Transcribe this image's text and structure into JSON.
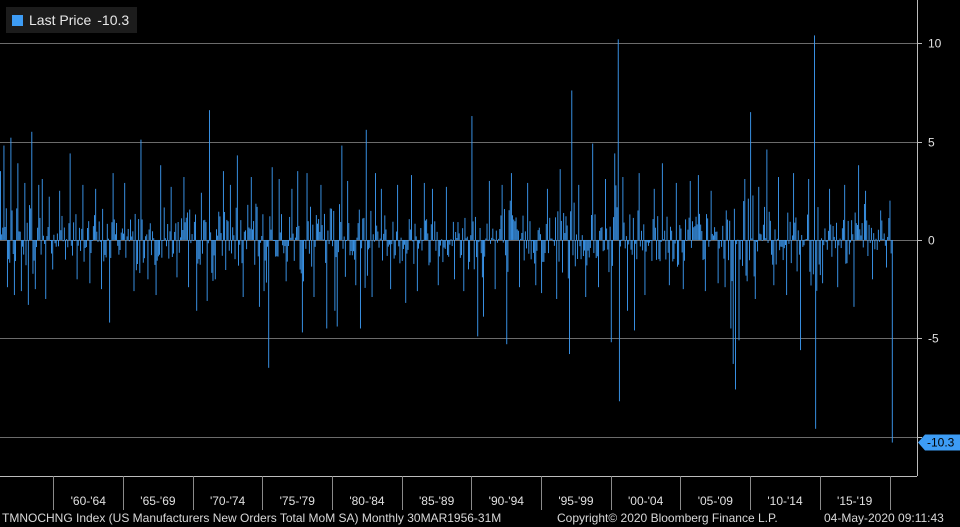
{
  "legend": {
    "label": "Last Price",
    "value": "-10.3",
    "color": "#3d9cf5"
  },
  "last_value_tag": "-10.3",
  "footer": {
    "left": "TMNOCHNG Index (US Manufacturers New Orders Total MoM SA)  Monthly 30MAR1956-31M",
    "copyright": "Copyright© 2020 Bloomberg Finance L.P.",
    "timestamp": "04-May-2020 09:11:43"
  },
  "chart_data": {
    "type": "bar",
    "title": "",
    "xlabel": "",
    "ylabel": "",
    "ylim": [
      -12.0,
      12.2
    ],
    "yticks": [
      10,
      5,
      0,
      -5,
      -10
    ],
    "ytick_labels": [
      "10",
      "5",
      "0",
      "-5",
      ""
    ],
    "grid": true,
    "axis_side": "right",
    "x_start": "1956-03",
    "x_end": "2020-03",
    "x_periods": [
      {
        "label": "'60-'64",
        "start": 1960,
        "end": 1965
      },
      {
        "label": "'65-'69",
        "start": 1965,
        "end": 1970
      },
      {
        "label": "'70-'74",
        "start": 1970,
        "end": 1975
      },
      {
        "label": "'75-'79",
        "start": 1975,
        "end": 1980
      },
      {
        "label": "'80-'84",
        "start": 1980,
        "end": 1985
      },
      {
        "label": "'85-'89",
        "start": 1985,
        "end": 1990
      },
      {
        "label": "'90-'94",
        "start": 1990,
        "end": 1995
      },
      {
        "label": "'95-'99",
        "start": 1995,
        "end": 2000
      },
      {
        "label": "'00-'04",
        "start": 2000,
        "end": 2005
      },
      {
        "label": "'05-'09",
        "start": 2005,
        "end": 2010
      },
      {
        "label": "'10-'14",
        "start": 2010,
        "end": 2015
      },
      {
        "label": "'15-'19",
        "start": 2015,
        "end": 2020
      }
    ],
    "series": [
      {
        "name": "Last Price",
        "color": "#3d9cf5",
        "points": [
          {
            "x": "1956-03",
            "y": 3.5
          },
          {
            "x": "1956-06",
            "y": 4.8
          },
          {
            "x": "1956-09",
            "y": -2.4
          },
          {
            "x": "1956-12",
            "y": 5.2
          },
          {
            "x": "1957-03",
            "y": -2.8
          },
          {
            "x": "1957-06",
            "y": 3.9
          },
          {
            "x": "1957-09",
            "y": -2.6
          },
          {
            "x": "1957-12",
            "y": 2.9
          },
          {
            "x": "1958-03",
            "y": -3.3
          },
          {
            "x": "1958-06",
            "y": 5.5
          },
          {
            "x": "1958-09",
            "y": -2.5
          },
          {
            "x": "1958-12",
            "y": 2.8
          },
          {
            "x": "1959-03",
            "y": 3.1
          },
          {
            "x": "1959-06",
            "y": -3.0
          },
          {
            "x": "1959-09",
            "y": 2.2
          },
          {
            "x": "1959-12",
            "y": -1.5
          },
          {
            "x": "1960-06",
            "y": 2.5
          },
          {
            "x": "1961-03",
            "y": 4.4
          },
          {
            "x": "1961-09",
            "y": -2.0
          },
          {
            "x": "1962-02",
            "y": 2.8
          },
          {
            "x": "1962-08",
            "y": -2.2
          },
          {
            "x": "1963-01",
            "y": 2.6
          },
          {
            "x": "1963-06",
            "y": -2.5
          },
          {
            "x": "1964-01",
            "y": -4.2
          },
          {
            "x": "1964-04",
            "y": 3.4
          },
          {
            "x": "1965-02",
            "y": 2.9
          },
          {
            "x": "1965-10",
            "y": -2.6
          },
          {
            "x": "1966-04",
            "y": 5.1
          },
          {
            "x": "1966-10",
            "y": -2.0
          },
          {
            "x": "1967-05",
            "y": -2.8
          },
          {
            "x": "1967-09",
            "y": 3.8
          },
          {
            "x": "1968-06",
            "y": 2.7
          },
          {
            "x": "1968-11",
            "y": -1.9
          },
          {
            "x": "1969-05",
            "y": 3.2
          },
          {
            "x": "1969-09",
            "y": -2.4
          },
          {
            "x": "1970-04",
            "y": -3.6
          },
          {
            "x": "1970-08",
            "y": 2.4
          },
          {
            "x": "1971-01",
            "y": -3.1
          },
          {
            "x": "1971-03",
            "y": 6.6
          },
          {
            "x": "1971-08",
            "y": -2.0
          },
          {
            "x": "1972-03",
            "y": 3.5
          },
          {
            "x": "1972-09",
            "y": 2.8
          },
          {
            "x": "1973-03",
            "y": 4.3
          },
          {
            "x": "1973-08",
            "y": -2.9
          },
          {
            "x": "1974-03",
            "y": 3.2
          },
          {
            "x": "1974-10",
            "y": -3.4
          },
          {
            "x": "1975-02",
            "y": -2.6
          },
          {
            "x": "1975-06",
            "y": -6.5
          },
          {
            "x": "1975-09",
            "y": 3.7
          },
          {
            "x": "1976-03",
            "y": 3.1
          },
          {
            "x": "1976-09",
            "y": -2.1
          },
          {
            "x": "1977-02",
            "y": 2.6
          },
          {
            "x": "1977-07",
            "y": 3.5
          },
          {
            "x": "1977-11",
            "y": -4.7
          },
          {
            "x": "1978-03",
            "y": 3.4
          },
          {
            "x": "1978-09",
            "y": -2.9
          },
          {
            "x": "1979-03",
            "y": 2.8
          },
          {
            "x": "1979-08",
            "y": -4.5
          },
          {
            "x": "1980-03",
            "y": -3.6
          },
          {
            "x": "1980-05",
            "y": -4.4
          },
          {
            "x": "1980-09",
            "y": 4.8
          },
          {
            "x": "1981-02",
            "y": 3.0
          },
          {
            "x": "1981-09",
            "y": -2.3
          },
          {
            "x": "1982-01",
            "y": -4.5
          },
          {
            "x": "1982-06",
            "y": 5.6
          },
          {
            "x": "1982-11",
            "y": -2.9
          },
          {
            "x": "1983-02",
            "y": 3.4
          },
          {
            "x": "1983-07",
            "y": 2.6
          },
          {
            "x": "1984-03",
            "y": -2.5
          },
          {
            "x": "1984-09",
            "y": 2.8
          },
          {
            "x": "1985-04",
            "y": -3.2
          },
          {
            "x": "1985-09",
            "y": 3.3
          },
          {
            "x": "1986-02",
            "y": -2.6
          },
          {
            "x": "1986-08",
            "y": 2.9
          },
          {
            "x": "1987-03",
            "y": 2.6
          },
          {
            "x": "1987-08",
            "y": -2.3
          },
          {
            "x": "1988-03",
            "y": 2.7
          },
          {
            "x": "1988-10",
            "y": -2.0
          },
          {
            "x": "1989-06",
            "y": -2.6
          },
          {
            "x": "1990-01",
            "y": 6.3
          },
          {
            "x": "1990-06",
            "y": -4.9
          },
          {
            "x": "1990-11",
            "y": -3.9
          },
          {
            "x": "1991-04",
            "y": 3.0
          },
          {
            "x": "1991-09",
            "y": -2.5
          },
          {
            "x": "1992-03",
            "y": 2.8
          },
          {
            "x": "1992-07",
            "y": -5.3
          },
          {
            "x": "1992-11",
            "y": 3.4
          },
          {
            "x": "1993-06",
            "y": -2.4
          },
          {
            "x": "1994-01",
            "y": 2.9
          },
          {
            "x": "1994-08",
            "y": -2.3
          },
          {
            "x": "1995-01",
            "y": -2.7
          },
          {
            "x": "1995-06",
            "y": 2.6
          },
          {
            "x": "1996-02",
            "y": -3.0
          },
          {
            "x": "1996-05",
            "y": 3.6
          },
          {
            "x": "1997-01",
            "y": -5.8
          },
          {
            "x": "1997-03",
            "y": 7.6
          },
          {
            "x": "1997-09",
            "y": 2.8
          },
          {
            "x": "1998-03",
            "y": -2.9
          },
          {
            "x": "1998-09",
            "y": 4.9
          },
          {
            "x": "1999-02",
            "y": -2.4
          },
          {
            "x": "1999-08",
            "y": 3.1
          },
          {
            "x": "2000-01",
            "y": -5.2
          },
          {
            "x": "2000-04",
            "y": 4.4
          },
          {
            "x": "2000-07",
            "y": 10.2
          },
          {
            "x": "2000-08",
            "y": -8.2
          },
          {
            "x": "2000-11",
            "y": 3.2
          },
          {
            "x": "2001-03",
            "y": -3.6
          },
          {
            "x": "2001-09",
            "y": -4.6
          },
          {
            "x": "2002-01",
            "y": 3.4
          },
          {
            "x": "2002-06",
            "y": -2.8
          },
          {
            "x": "2003-02",
            "y": 2.6
          },
          {
            "x": "2003-09",
            "y": 3.9
          },
          {
            "x": "2004-03",
            "y": -2.3
          },
          {
            "x": "2004-09",
            "y": 2.9
          },
          {
            "x": "2005-03",
            "y": -2.5
          },
          {
            "x": "2005-09",
            "y": 3.0
          },
          {
            "x": "2006-04",
            "y": 3.3
          },
          {
            "x": "2006-10",
            "y": -2.6
          },
          {
            "x": "2007-03",
            "y": 2.5
          },
          {
            "x": "2007-09",
            "y": -2.2
          },
          {
            "x": "2008-03",
            "y": -2.4
          },
          {
            "x": "2008-08",
            "y": -4.5
          },
          {
            "x": "2008-10",
            "y": -6.3
          },
          {
            "x": "2008-12",
            "y": -7.6
          },
          {
            "x": "2009-03",
            "y": -5.1
          },
          {
            "x": "2009-08",
            "y": 3.1
          },
          {
            "x": "2010-01",
            "y": 6.5
          },
          {
            "x": "2010-05",
            "y": -3.0
          },
          {
            "x": "2010-08",
            "y": 2.7
          },
          {
            "x": "2011-03",
            "y": 4.6
          },
          {
            "x": "2011-09",
            "y": -2.3
          },
          {
            "x": "2012-01",
            "y": 3.2
          },
          {
            "x": "2012-08",
            "y": -2.8
          },
          {
            "x": "2013-02",
            "y": 3.4
          },
          {
            "x": "2013-08",
            "y": -5.6
          },
          {
            "x": "2014-03",
            "y": 3.1
          },
          {
            "x": "2014-08",
            "y": 10.4
          },
          {
            "x": "2014-09",
            "y": -9.6
          },
          {
            "x": "2015-03",
            "y": -2.2
          },
          {
            "x": "2015-09",
            "y": 2.6
          },
          {
            "x": "2016-04",
            "y": -2.4
          },
          {
            "x": "2016-10",
            "y": 2.8
          },
          {
            "x": "2017-06",
            "y": -3.4
          },
          {
            "x": "2017-10",
            "y": 3.8
          },
          {
            "x": "2018-04",
            "y": 2.5
          },
          {
            "x": "2018-10",
            "y": -2.0
          },
          {
            "x": "2019-05",
            "y": 1.5
          },
          {
            "x": "2019-10",
            "y": -1.4
          },
          {
            "x": "2020-01",
            "y": 2.0
          },
          {
            "x": "2020-03",
            "y": -10.3
          }
        ]
      }
    ]
  }
}
